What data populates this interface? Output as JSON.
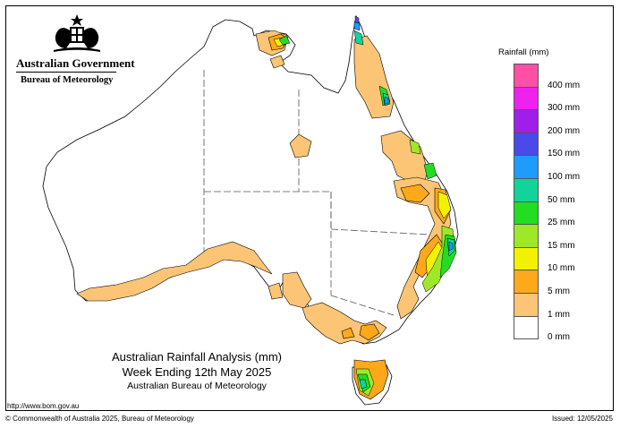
{
  "branding": {
    "government": "Australian Government",
    "bureau": "Bureau of Meteorology"
  },
  "legend": {
    "title": "Rainfall (mm)",
    "items": [
      {
        "label": "400 mm",
        "color": "#ff4fa6"
      },
      {
        "label": "300 mm",
        "color": "#ee22ee"
      },
      {
        "label": "200 mm",
        "color": "#9f1fe8"
      },
      {
        "label": "150 mm",
        "color": "#4a4ae8"
      },
      {
        "label": "100 mm",
        "color": "#1e9bff"
      },
      {
        "label": "50 mm",
        "color": "#12d39a"
      },
      {
        "label": "25 mm",
        "color": "#22dd22"
      },
      {
        "label": "15 mm",
        "color": "#9ee82a"
      },
      {
        "label": "10 mm",
        "color": "#f2f200"
      },
      {
        "label": "5 mm",
        "color": "#ffa81a"
      },
      {
        "label": "1 mm",
        "color": "#fbc575"
      },
      {
        "label": "0 mm",
        "color": "#ffffff"
      }
    ]
  },
  "map_colors": {
    "land": "#ffffff",
    "rain_1mm": "#fbc575",
    "rain_5mm": "#ffa81a",
    "rain_10mm": "#f2f200",
    "rain_15mm": "#9ee82a",
    "rain_25mm": "#22dd22",
    "rain_50mm": "#12d39a",
    "rain_100mm": "#1e9bff",
    "rain_150mm": "#4a4ae8"
  },
  "titles": {
    "line1": "Australian Rainfall Analysis (mm)",
    "line2": "Week Ending 12th May 2025",
    "line3": "Australian Bureau of Meteorology"
  },
  "footer": {
    "url": "http://www.bom.gov.au",
    "copyright": "© Commonwealth of Australia 2025, Bureau of Meteorology",
    "issued": "Issued: 12/05/2025"
  }
}
